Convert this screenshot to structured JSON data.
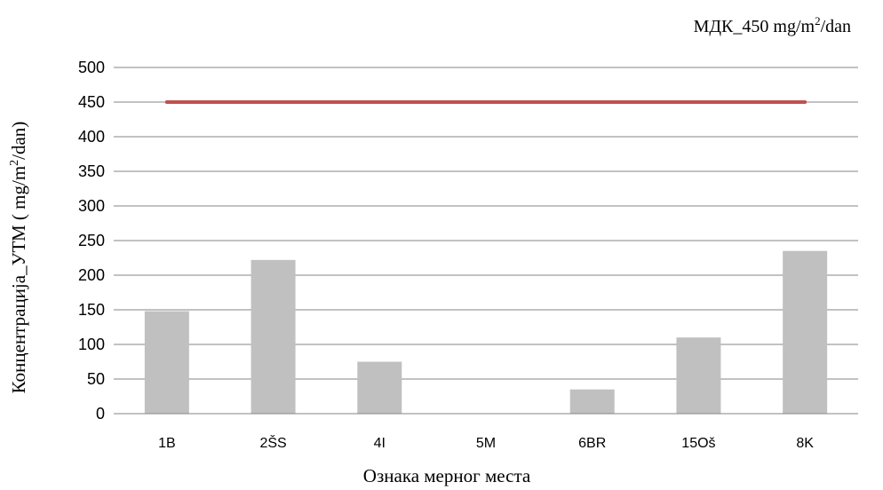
{
  "chart_data": {
    "type": "bar",
    "categories": [
      "1B",
      "2ŠS",
      "4I",
      "5M",
      "6BR",
      "15Oš",
      "8K"
    ],
    "series": [
      {
        "values": [
          148,
          222,
          75,
          0,
          35,
          110,
          235
        ],
        "color": "#c0c0c0"
      }
    ],
    "reference_line": {
      "value": 450,
      "color": "#c0504d"
    },
    "legend": {
      "prefix": "МДК_450 mg/m",
      "sup": "2",
      "suffix": "/dan",
      "position": "top-right"
    },
    "ylabel": {
      "prefix": "Концентрација_УТМ  ( mg/m",
      "sup": "2",
      "suffix": "/dan)"
    },
    "xlabel": "Ознака мерног места",
    "ylim": [
      0,
      500
    ],
    "yticks": [
      0,
      50,
      100,
      150,
      200,
      250,
      300,
      350,
      400,
      450,
      500
    ],
    "grid": true
  }
}
